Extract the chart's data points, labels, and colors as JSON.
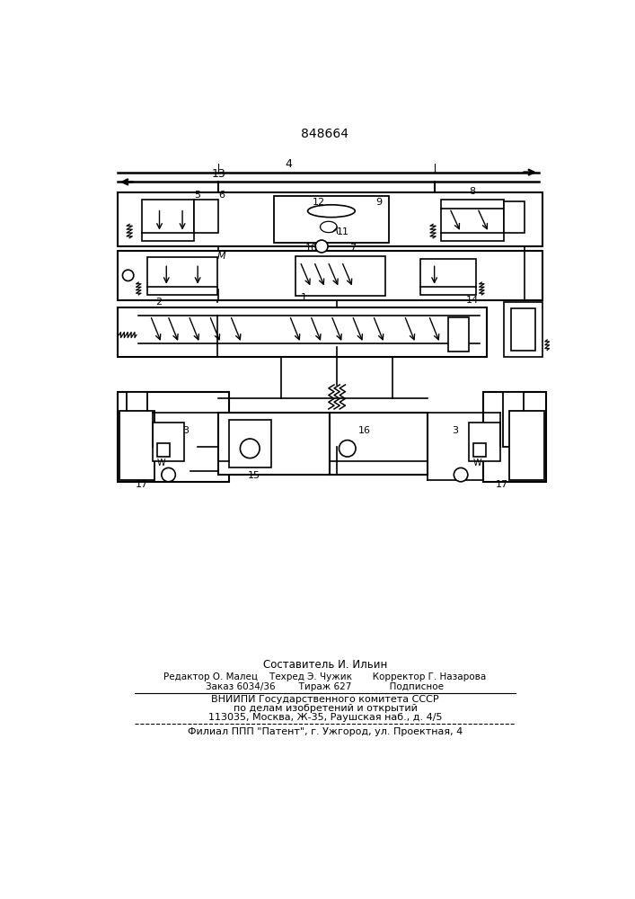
{
  "title_number": "848664",
  "footer_lines": [
    "Составитель И. Ильин",
    "Редактор О. Малец    Техред Э. Чужик       Корректор Г. Назарова",
    "Заказ 6034/36        Тираж 627             Подписное",
    "ВНИИПИ Государственного комитета СССР",
    "по делам изобретений и открытий",
    "113035, Москва, Ж-35, Раушская наб., д. 4/5",
    "Филиал ППП \"Патент\", г. Ужгород, ул. Проектная, 4"
  ]
}
